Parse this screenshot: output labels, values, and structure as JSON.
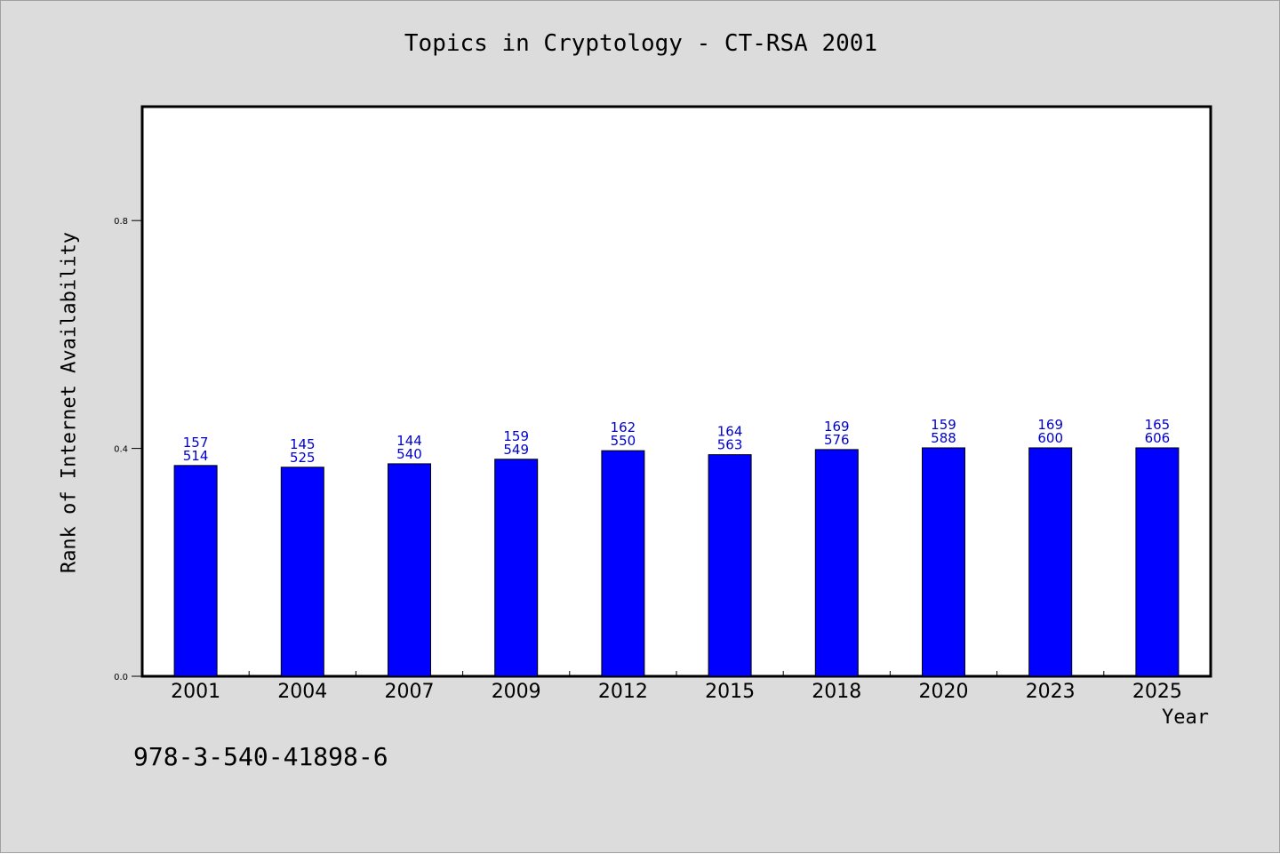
{
  "page": {
    "title": "Topics in Cryptology - CT-RSA 2001",
    "isbn": "978-3-540-41898-6"
  },
  "chart_data": {
    "type": "bar",
    "title": "Topics in Cryptology - CT-RSA 2001",
    "xlabel": "Year",
    "ylabel": "Rank of Internet Availability",
    "categories": [
      "2001",
      "2004",
      "2007",
      "2009",
      "2012",
      "2015",
      "2018",
      "2020",
      "2023",
      "2025"
    ],
    "values": [
      0.37,
      0.367,
      0.373,
      0.381,
      0.396,
      0.389,
      0.398,
      0.401,
      0.401,
      0.401
    ],
    "labels_top": [
      "157",
      "145",
      "144",
      "159",
      "162",
      "164",
      "169",
      "159",
      "169",
      "165"
    ],
    "labels_bottom": [
      "514",
      "525",
      "540",
      "549",
      "550",
      "563",
      "576",
      "588",
      "600",
      "606"
    ],
    "ylim": [
      0,
      1.0
    ],
    "yticks": [
      0.0,
      0.4,
      0.8
    ],
    "ytick_labels": [
      "0.0",
      "0.4",
      "0.8"
    ],
    "grid": false,
    "legend": "none",
    "colors": {
      "bar": "#0000ff",
      "bar_label": "#0000cc",
      "background": "#dcdcdc",
      "plot_area": "#ffffff"
    }
  }
}
